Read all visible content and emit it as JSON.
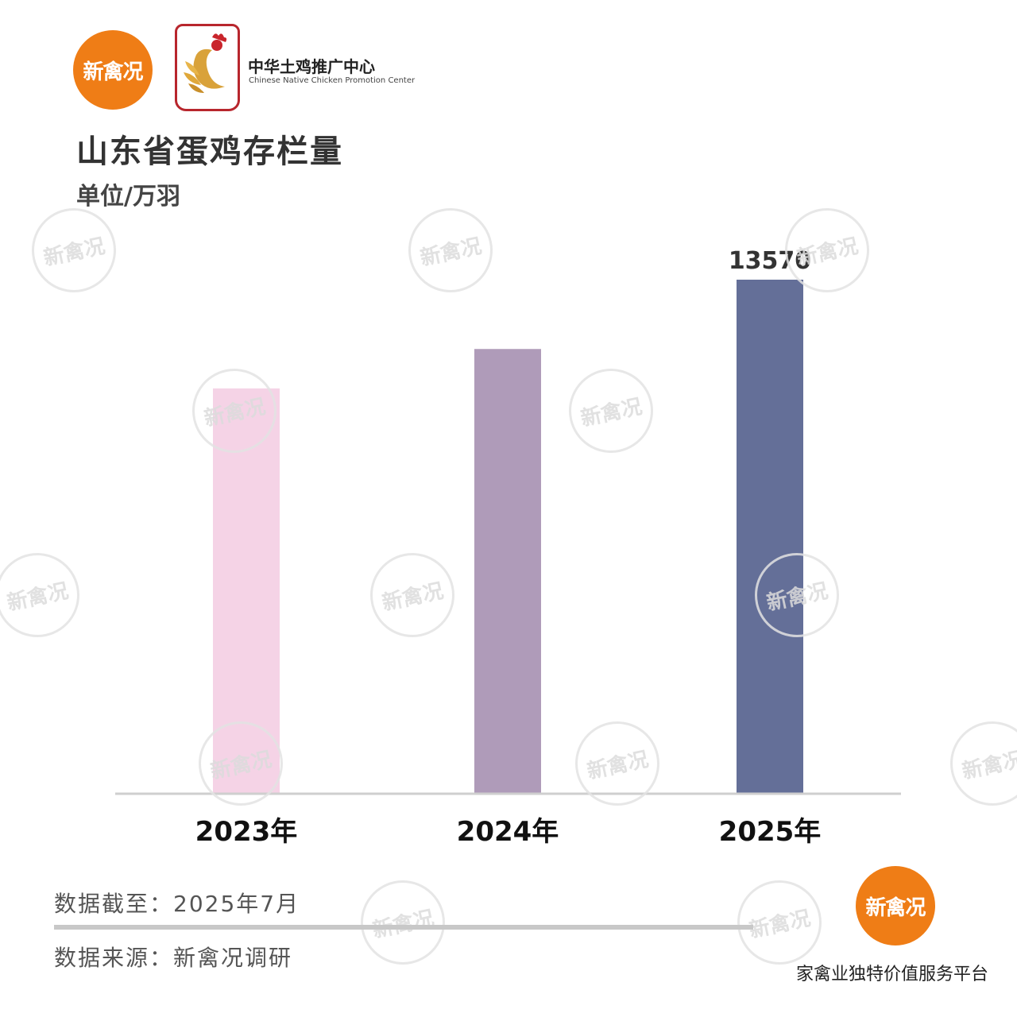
{
  "brand": {
    "logo_text": "新禽况",
    "org_name": "中华土鸡推广中心",
    "org_name_en": "Chinese Native Chicken Promotion Center",
    "watermark_text": "新禽况",
    "accent_color": "#ef7d16",
    "badge_color": "#b8262d"
  },
  "header": {
    "title": "山东省蛋鸡存栏量",
    "unit": "单位/万羽"
  },
  "chart_data": {
    "type": "bar",
    "categories": [
      "2023年",
      "2024年",
      "2025年"
    ],
    "values": [
      10700,
      11740,
      13570
    ],
    "data_labels": [
      "",
      "",
      "13570"
    ],
    "colors": [
      "#f5d3e6",
      "#af9bb9",
      "#646f98"
    ],
    "title": "山东省蛋鸡存栏量",
    "ylabel": "单位/万羽",
    "ylim": [
      0,
      13570
    ],
    "grid": false,
    "legend": "none"
  },
  "footer": {
    "date_note": "数据截至：2025年7月",
    "source_note": "数据来源：新禽况调研",
    "slogan": "家禽业独特价值服务平台"
  }
}
